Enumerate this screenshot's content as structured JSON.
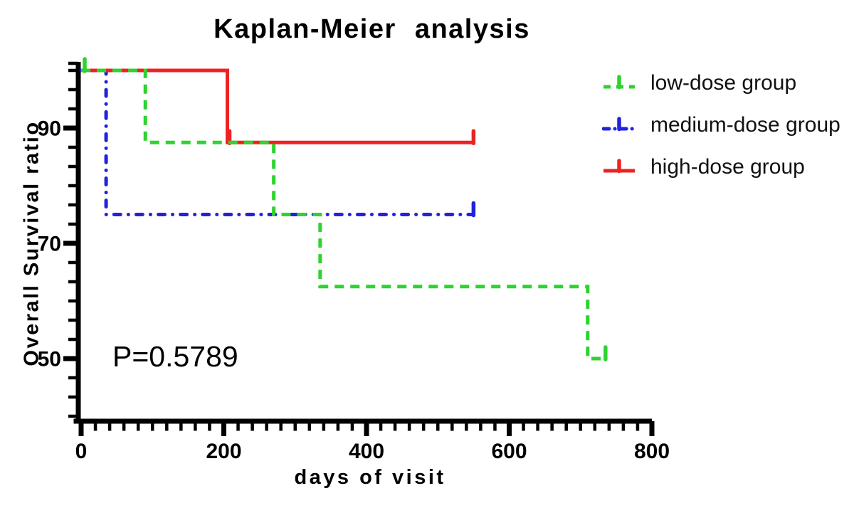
{
  "title": "Kaplan-Meier analysis",
  "annotation": {
    "p_value": "P=0.5789"
  },
  "chart_data": {
    "type": "line",
    "subtype": "kaplan-meier-step",
    "title": "Kaplan-Meier analysis",
    "xlabel": "days of visit",
    "ylabel": "Overall Survival ratio",
    "annotation": "P=0.5789",
    "grid": false,
    "legend_position": "right-top",
    "axis_color": "#000000",
    "background_color": "#FFFFFF",
    "x_axis": {
      "min": 0,
      "max": 800,
      "major_ticks": [
        0,
        200,
        400,
        600,
        800
      ],
      "minor_tick_interval": 20
    },
    "y_axis": {
      "major_ticks": [
        50,
        70,
        90
      ],
      "major_interval": 20,
      "minor_divisions_per_major": 6,
      "drawn_min": 40,
      "drawn_max": 100
    },
    "series": [
      {
        "name": "low-dose group",
        "color": "#2FD32F",
        "line_style": "dashed",
        "steps": [
          [
            0,
            100
          ],
          [
            90,
            100
          ],
          [
            90,
            87.5
          ],
          [
            270,
            87.5
          ],
          [
            270,
            75
          ],
          [
            335,
            75
          ],
          [
            335,
            62.5
          ],
          [
            710,
            62.5
          ],
          [
            710,
            50
          ],
          [
            735,
            50
          ]
        ],
        "censor_marks": [
          [
            5,
            100
          ],
          [
            735,
            50
          ]
        ]
      },
      {
        "name": "medium-dose group",
        "color": "#2222DD",
        "line_style": "dash-dot",
        "steps": [
          [
            0,
            100
          ],
          [
            35,
            100
          ],
          [
            35,
            75
          ],
          [
            550,
            75
          ]
        ],
        "censor_marks": [
          [
            550,
            75
          ]
        ]
      },
      {
        "name": "high-dose group",
        "color": "#EE2222",
        "line_style": "solid",
        "steps": [
          [
            0,
            100
          ],
          [
            205,
            100
          ],
          [
            205,
            87.5
          ],
          [
            550,
            87.5
          ]
        ],
        "censor_marks": [
          [
            208,
            87.5
          ],
          [
            550,
            87.5
          ]
        ]
      }
    ]
  }
}
